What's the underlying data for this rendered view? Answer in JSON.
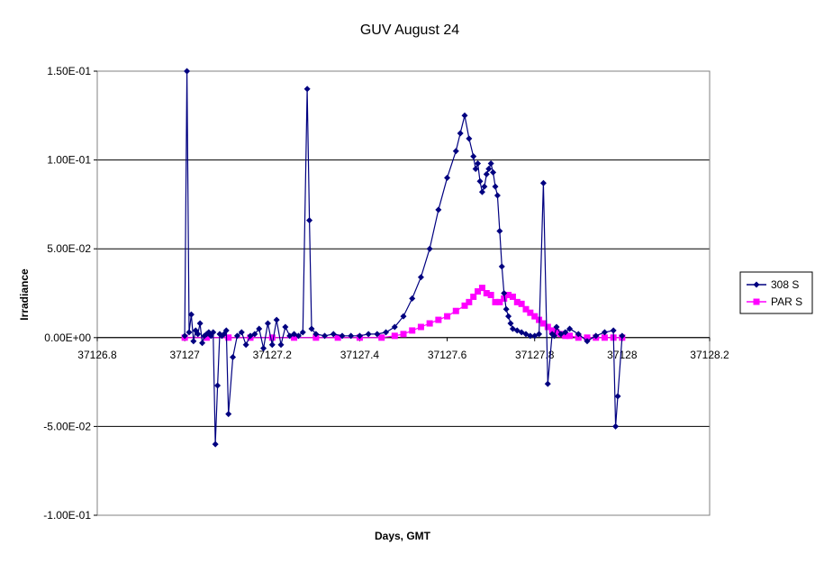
{
  "chart_data": {
    "type": "line",
    "title": "GUV August 24",
    "xlabel": "Days, GMT",
    "ylabel": "Irradiance",
    "xlim": [
      37126.8,
      37128.2
    ],
    "ylim": [
      -0.1,
      0.15
    ],
    "x_ticks": [
      37126.8,
      37127,
      37127.2,
      37127.4,
      37127.6,
      37127.8,
      37128,
      37128.2
    ],
    "x_tick_labels": [
      "37126.8",
      "37127",
      "37127.2",
      "37127.4",
      "37127.6",
      "37127.8",
      "37128",
      "37128.2"
    ],
    "y_ticks": [
      0.15,
      0.1,
      0.05,
      0,
      -0.05,
      -0.1
    ],
    "y_tick_labels": [
      "1.50E-01",
      "1.00E-01",
      "5.00E-02",
      "0.00E+00",
      "-5.00E-02",
      "-1.00E-01"
    ],
    "grid": "horizontal",
    "legend": "right",
    "series": [
      {
        "name": "308 S",
        "color": "#000080",
        "marker": "diamond",
        "x": [
          37127.0,
          37127.005,
          37127.01,
          37127.015,
          37127.02,
          37127.025,
          37127.03,
          37127.035,
          37127.04,
          37127.045,
          37127.05,
          37127.055,
          37127.06,
          37127.065,
          37127.07,
          37127.075,
          37127.08,
          37127.085,
          37127.09,
          37127.095,
          37127.1,
          37127.11,
          37127.12,
          37127.13,
          37127.14,
          37127.15,
          37127.16,
          37127.17,
          37127.18,
          37127.19,
          37127.2,
          37127.21,
          37127.22,
          37127.23,
          37127.24,
          37127.25,
          37127.26,
          37127.27,
          37127.28,
          37127.285,
          37127.29,
          37127.3,
          37127.32,
          37127.34,
          37127.36,
          37127.38,
          37127.4,
          37127.42,
          37127.44,
          37127.46,
          37127.48,
          37127.5,
          37127.52,
          37127.54,
          37127.56,
          37127.58,
          37127.6,
          37127.62,
          37127.63,
          37127.64,
          37127.65,
          37127.66,
          37127.665,
          37127.67,
          37127.675,
          37127.68,
          37127.685,
          37127.69,
          37127.695,
          37127.7,
          37127.705,
          37127.71,
          37127.715,
          37127.72,
          37127.725,
          37127.73,
          37127.735,
          37127.74,
          37127.745,
          37127.75,
          37127.76,
          37127.77,
          37127.78,
          37127.79,
          37127.8,
          37127.81,
          37127.82,
          37127.83,
          37127.84,
          37127.845,
          37127.85,
          37127.86,
          37127.87,
          37127.88,
          37127.9,
          37127.92,
          37127.94,
          37127.96,
          37127.98,
          37127.985,
          37127.99,
          37128.0
        ],
        "y": [
          0.001,
          0.15,
          0.003,
          0.013,
          -0.002,
          0.004,
          0.002,
          0.008,
          -0.003,
          0.001,
          0.002,
          0.003,
          0.001,
          0.003,
          -0.06,
          -0.027,
          0.002,
          0.001,
          0.002,
          0.004,
          -0.043,
          -0.011,
          0.001,
          0.003,
          -0.004,
          0.001,
          0.002,
          0.005,
          -0.006,
          0.008,
          -0.004,
          0.01,
          -0.004,
          0.006,
          0.001,
          0.002,
          0.001,
          0.003,
          0.14,
          0.066,
          0.005,
          0.002,
          0.001,
          0.002,
          0.001,
          0.001,
          0.001,
          0.002,
          0.002,
          0.003,
          0.006,
          0.012,
          0.022,
          0.034,
          0.05,
          0.072,
          0.09,
          0.105,
          0.115,
          0.125,
          0.112,
          0.102,
          0.095,
          0.098,
          0.088,
          0.082,
          0.085,
          0.092,
          0.095,
          0.098,
          0.093,
          0.085,
          0.08,
          0.06,
          0.04,
          0.025,
          0.016,
          0.012,
          0.008,
          0.005,
          0.004,
          0.003,
          0.002,
          0.001,
          0.001,
          0.002,
          0.087,
          -0.026,
          0.002,
          0.001,
          0.006,
          0.002,
          0.003,
          0.005,
          0.002,
          -0.002,
          0.001,
          0.003,
          0.004,
          -0.05,
          -0.033,
          0.001
        ]
      },
      {
        "name": "PAR S",
        "color": "#FF00FF",
        "marker": "square",
        "x": [
          37127.0,
          37127.05,
          37127.1,
          37127.15,
          37127.2,
          37127.25,
          37127.3,
          37127.35,
          37127.4,
          37127.45,
          37127.48,
          37127.5,
          37127.52,
          37127.54,
          37127.56,
          37127.58,
          37127.6,
          37127.62,
          37127.64,
          37127.65,
          37127.66,
          37127.67,
          37127.68,
          37127.69,
          37127.7,
          37127.71,
          37127.72,
          37127.73,
          37127.74,
          37127.75,
          37127.76,
          37127.77,
          37127.78,
          37127.79,
          37127.8,
          37127.81,
          37127.82,
          37127.83,
          37127.84,
          37127.85,
          37127.86,
          37127.87,
          37127.88,
          37127.9,
          37127.92,
          37127.94,
          37127.96,
          37127.98,
          37128.0
        ],
        "y": [
          0,
          0,
          0,
          0,
          0,
          0,
          0,
          0,
          0,
          0,
          0.001,
          0.002,
          0.004,
          0.006,
          0.008,
          0.01,
          0.012,
          0.015,
          0.018,
          0.02,
          0.023,
          0.026,
          0.028,
          0.025,
          0.024,
          0.02,
          0.02,
          0.022,
          0.024,
          0.023,
          0.02,
          0.019,
          0.016,
          0.014,
          0.012,
          0.01,
          0.008,
          0.006,
          0.004,
          0.003,
          0.002,
          0.001,
          0.001,
          0,
          0,
          0,
          0,
          0,
          0
        ]
      }
    ]
  }
}
